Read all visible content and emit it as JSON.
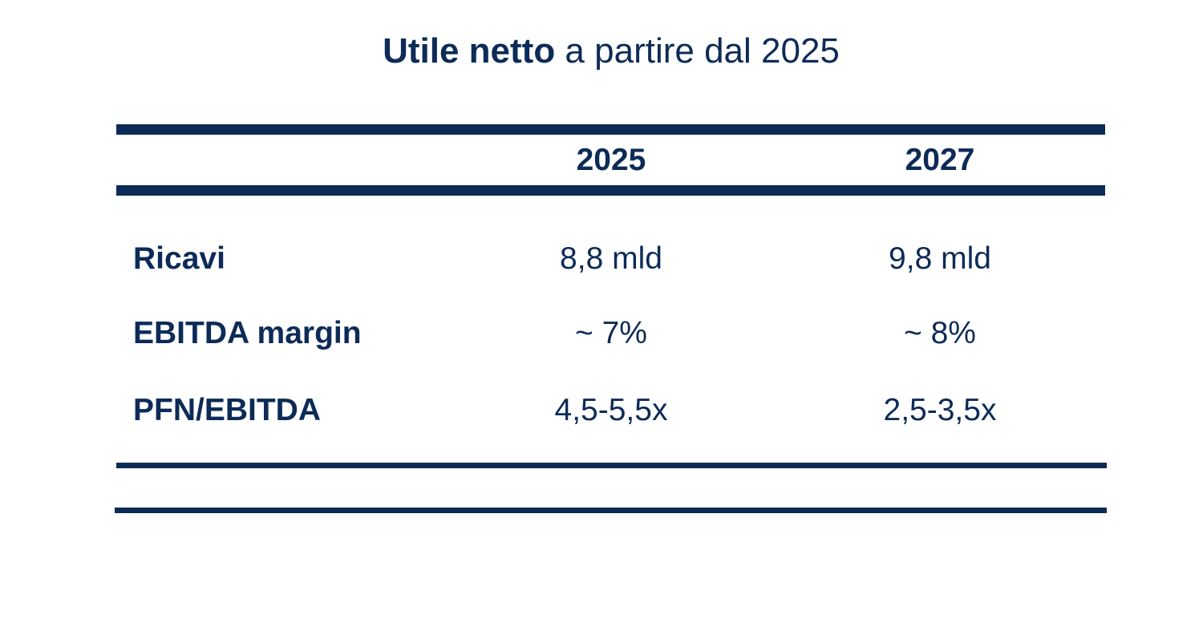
{
  "title": {
    "bold": "Utile netto",
    "rest": " a partire dal 2025"
  },
  "table": {
    "columns": [
      "2025",
      "2027"
    ],
    "rows": [
      {
        "label": "Ricavi",
        "values": [
          "8,8 mld",
          "9,8 mld"
        ]
      },
      {
        "label": "EBITDA margin",
        "values": [
          "~ 7%",
          "~ 8%"
        ]
      },
      {
        "label": "PFN/EBITDA",
        "values": [
          "4,5-5,5x",
          "2,5-3,5x"
        ]
      }
    ]
  },
  "colors": {
    "text": "#0d2b57",
    "rule": "#0d2b57",
    "background": "#ffffff"
  }
}
